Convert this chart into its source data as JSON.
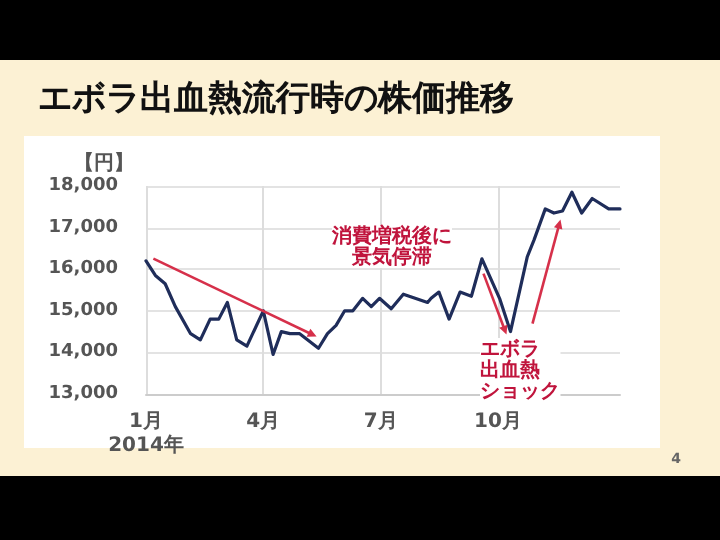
{
  "chart_data": {
    "type": "line",
    "title": "エボラ出血熱流行時の株価推移",
    "ylabel": "【円】",
    "x": [
      1,
      1.24,
      1.49,
      1.75,
      2.14,
      2.39,
      2.64,
      2.86,
      3.08,
      3.32,
      3.58,
      4,
      4.25,
      4.46,
      4.68,
      4.93,
      5.41,
      5.64,
      5.86,
      6.08,
      6.29,
      6.54,
      6.76,
      6.97,
      7.27,
      7.58,
      8.2,
      8.29,
      8.49,
      8.75,
      9.03,
      9.32,
      9.59,
      10.04,
      10.32,
      10.75,
      10.92,
      11.21,
      11.43,
      11.65,
      11.89,
      12.14,
      12.41,
      12.83,
      13.12
    ],
    "series": [
      {
        "color": "#1f2d5a",
        "values": [
          16200,
          15850,
          15650,
          15100,
          14450,
          14300,
          14800,
          14800,
          15200,
          14300,
          14150,
          15000,
          13950,
          14500,
          14450,
          14450,
          14100,
          14450,
          14650,
          15000,
          15000,
          15300,
          15100,
          15300,
          15050,
          15400,
          15200,
          15300,
          15450,
          14800,
          15450,
          15350,
          16250,
          15300,
          14500,
          16300,
          16700,
          17450,
          17350,
          17400,
          17850,
          17350,
          17700,
          17450,
          17450
        ]
      }
    ],
    "xlim": [
      1,
      13.12
    ],
    "xticks": [
      {
        "value": 1,
        "label": "1月\n2014年"
      },
      {
        "value": 4,
        "label": "4月"
      },
      {
        "value": 7,
        "label": "7月"
      },
      {
        "value": 10,
        "label": "10月"
      }
    ],
    "ylim": [
      13000,
      18000
    ],
    "yticks": [
      {
        "value": 13000,
        "label": "13,000"
      },
      {
        "value": 14000,
        "label": "14,000"
      },
      {
        "value": 15000,
        "label": "15,000"
      },
      {
        "value": 16000,
        "label": "16,000"
      },
      {
        "value": 17000,
        "label": "17,000"
      },
      {
        "value": 18000,
        "label": "18,000"
      }
    ],
    "grid": true,
    "marker": "none",
    "line_style": "solid",
    "annotations": [
      "消費増税後に景気停滞",
      {
        "text": "エボラ出血熱ショック",
        "x": 10.32,
        "y": 14500
      },
      "4"
    ]
  }
}
